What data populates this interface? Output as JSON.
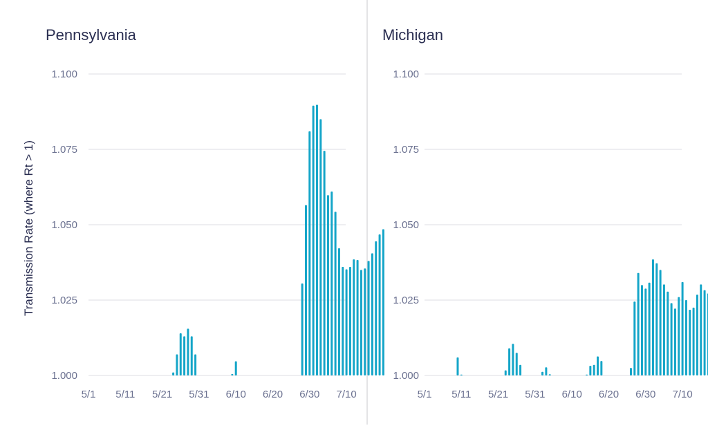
{
  "ylabel": "Transmission Rate (where Rt > 1)",
  "colors": {
    "bar": "#14a5c8",
    "grid": "#dddde3",
    "text": "#2b2f52",
    "tick": "#6b7190"
  },
  "chart_data": [
    {
      "type": "bar",
      "title": "Pennsylvania",
      "ylabel": "Transmission Rate (where Rt > 1)",
      "ylim": [
        1.0,
        1.1
      ],
      "yticks": [
        "1.000",
        "1.025",
        "1.050",
        "1.075",
        "1.100"
      ],
      "xticks": [
        "5/1",
        "5/11",
        "5/21",
        "5/31",
        "6/10",
        "6/20",
        "6/30",
        "7/10"
      ],
      "x_start": "2020-05-01",
      "x_end": "2020-07-20",
      "bars": [
        {
          "x": "5/24",
          "y": 1.001
        },
        {
          "x": "5/25",
          "y": 1.007
        },
        {
          "x": "5/26",
          "y": 1.014
        },
        {
          "x": "5/27",
          "y": 1.013
        },
        {
          "x": "5/28",
          "y": 1.0155
        },
        {
          "x": "5/29",
          "y": 1.013
        },
        {
          "x": "5/30",
          "y": 1.007
        },
        {
          "x": "6/9",
          "y": 1.0005
        },
        {
          "x": "6/10",
          "y": 1.0047
        },
        {
          "x": "6/28",
          "y": 1.0305
        },
        {
          "x": "6/29",
          "y": 1.0565
        },
        {
          "x": "6/30",
          "y": 1.081
        },
        {
          "x": "7/1",
          "y": 1.0895
        },
        {
          "x": "7/2",
          "y": 1.0898
        },
        {
          "x": "7/3",
          "y": 1.085
        },
        {
          "x": "7/4",
          "y": 1.0745
        },
        {
          "x": "7/5",
          "y": 1.0598
        },
        {
          "x": "7/6",
          "y": 1.061
        },
        {
          "x": "7/7",
          "y": 1.0543
        },
        {
          "x": "7/8",
          "y": 1.0422
        },
        {
          "x": "7/9",
          "y": 1.036
        },
        {
          "x": "7/10",
          "y": 1.0352
        },
        {
          "x": "7/11",
          "y": 1.036
        },
        {
          "x": "7/12",
          "y": 1.0385
        },
        {
          "x": "7/13",
          "y": 1.0383
        },
        {
          "x": "7/14",
          "y": 1.035
        },
        {
          "x": "7/15",
          "y": 1.0355
        },
        {
          "x": "7/16",
          "y": 1.038
        },
        {
          "x": "7/17",
          "y": 1.0405
        },
        {
          "x": "7/18",
          "y": 1.0445
        },
        {
          "x": "7/19",
          "y": 1.0468
        },
        {
          "x": "7/20",
          "y": 1.0485
        }
      ]
    },
    {
      "type": "bar",
      "title": "Michigan",
      "ylim": [
        1.0,
        1.1
      ],
      "yticks": [
        "1.000",
        "1.025",
        "1.050",
        "1.075",
        "1.100"
      ],
      "xticks": [
        "5/1",
        "5/11",
        "5/21",
        "5/31",
        "6/10",
        "6/20",
        "6/30",
        "7/10"
      ],
      "x_start": "2020-05-01",
      "x_end": "2020-07-20",
      "bars": [
        {
          "x": "5/10",
          "y": 1.006
        },
        {
          "x": "5/11",
          "y": 1.0003
        },
        {
          "x": "5/23",
          "y": 1.0017
        },
        {
          "x": "5/24",
          "y": 1.009
        },
        {
          "x": "5/25",
          "y": 1.0105
        },
        {
          "x": "5/26",
          "y": 1.0075
        },
        {
          "x": "5/27",
          "y": 1.0035
        },
        {
          "x": "6/2",
          "y": 1.0012
        },
        {
          "x": "6/3",
          "y": 1.0027
        },
        {
          "x": "6/4",
          "y": 1.0004
        },
        {
          "x": "6/14",
          "y": 1.0003
        },
        {
          "x": "6/15",
          "y": 1.0032
        },
        {
          "x": "6/16",
          "y": 1.0035
        },
        {
          "x": "6/17",
          "y": 1.0063
        },
        {
          "x": "6/18",
          "y": 1.0048
        },
        {
          "x": "6/26",
          "y": 1.0025
        },
        {
          "x": "6/27",
          "y": 1.0245
        },
        {
          "x": "6/28",
          "y": 1.034
        },
        {
          "x": "6/29",
          "y": 1.03
        },
        {
          "x": "6/30",
          "y": 1.0288
        },
        {
          "x": "7/1",
          "y": 1.0308
        },
        {
          "x": "7/2",
          "y": 1.0385
        },
        {
          "x": "7/3",
          "y": 1.0372
        },
        {
          "x": "7/4",
          "y": 1.035
        },
        {
          "x": "7/5",
          "y": 1.0302
        },
        {
          "x": "7/6",
          "y": 1.0278
        },
        {
          "x": "7/7",
          "y": 1.024
        },
        {
          "x": "7/8",
          "y": 1.0222
        },
        {
          "x": "7/9",
          "y": 1.026
        },
        {
          "x": "7/10",
          "y": 1.031
        },
        {
          "x": "7/11",
          "y": 1.025
        },
        {
          "x": "7/12",
          "y": 1.0218
        },
        {
          "x": "7/13",
          "y": 1.0225
        },
        {
          "x": "7/14",
          "y": 1.0268
        },
        {
          "x": "7/15",
          "y": 1.0302
        },
        {
          "x": "7/16",
          "y": 1.0283
        },
        {
          "x": "7/17",
          "y": 1.0272
        },
        {
          "x": "7/18",
          "y": 1.025
        }
      ]
    }
  ]
}
